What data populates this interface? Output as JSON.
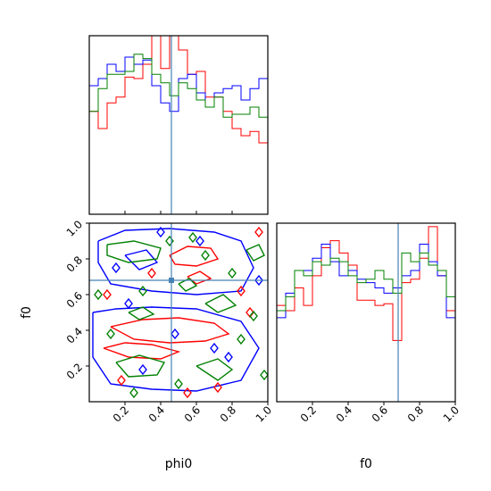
{
  "chart_data": {
    "type": "corner",
    "parameters": [
      {
        "name": "phi0",
        "xlabel": "phi0",
        "range": [
          0,
          1
        ],
        "ticks": [
          0.2,
          0.4,
          0.6,
          0.8,
          1.0
        ],
        "tick_labels": [
          "0.2",
          "0.4",
          "0.6",
          "0.8",
          "1.0"
        ],
        "truth": 0.46
      },
      {
        "name": "f0",
        "xlabel": "f0",
        "ylabel": "f0",
        "range": [
          0,
          1
        ],
        "ticks": [
          0.2,
          0.4,
          0.6,
          0.8,
          1.0
        ],
        "tick_labels": [
          "0.2",
          "0.4",
          "0.6",
          "0.8",
          "1.0"
        ],
        "truth": 0.68
      }
    ],
    "truth_color": "#4682b4",
    "series_colors": [
      "#ff0000",
      "#0000ff",
      "#008000"
    ],
    "hist_phi0": {
      "bins": 20,
      "ylim": [
        0,
        1.25
      ],
      "series": [
        {
          "color": "#ff0000",
          "values": [
            0.72,
            0.6,
            0.78,
            0.82,
            0.96,
            0.95,
            1.05,
            1.45,
            1.02,
            1.45,
            1.15,
            0.98,
            1.0,
            0.82,
            0.82,
            0.72,
            0.6,
            0.55,
            0.58,
            0.5
          ]
        },
        {
          "color": "#0000ff",
          "values": [
            0.9,
            0.95,
            1.05,
            1.0,
            1.1,
            1.05,
            1.08,
            0.9,
            0.78,
            0.72,
            0.95,
            0.98,
            0.85,
            0.75,
            0.85,
            0.88,
            0.9,
            0.8,
            0.88,
            0.95
          ]
        },
        {
          "color": "#008000",
          "values": [
            0.72,
            0.88,
            0.98,
            0.98,
            1.0,
            1.12,
            1.09,
            0.98,
            0.92,
            0.83,
            0.92,
            0.88,
            0.8,
            0.75,
            0.82,
            0.68,
            0.7,
            0.7,
            0.75,
            0.68
          ]
        }
      ]
    },
    "hist_f0": {
      "bins": 20,
      "ylim": [
        0,
        1.02
      ],
      "series": [
        {
          "color": "#ff0000",
          "values": [
            0.55,
            0.52,
            0.65,
            0.55,
            0.72,
            0.88,
            0.92,
            0.85,
            0.78,
            0.58,
            0.58,
            0.55,
            0.56,
            0.35,
            0.68,
            0.7,
            0.82,
            1.0,
            0.72,
            0.52
          ]
        },
        {
          "color": "#0000ff",
          "values": [
            0.48,
            0.62,
            0.75,
            0.75,
            0.82,
            0.9,
            0.8,
            0.72,
            0.75,
            0.7,
            0.68,
            0.65,
            0.62,
            0.65,
            0.72,
            0.75,
            0.9,
            0.8,
            0.72,
            0.48
          ]
        },
        {
          "color": "#008000",
          "values": [
            0.52,
            0.6,
            0.75,
            0.72,
            0.8,
            0.78,
            0.82,
            0.8,
            0.72,
            0.68,
            0.7,
            0.75,
            0.7,
            0.62,
            0.85,
            0.8,
            0.85,
            0.78,
            0.75,
            0.6
          ]
        }
      ]
    },
    "contour_phi0_f0": {
      "note_levels": [
        "red",
        "blue",
        "green"
      ],
      "rings": [
        {
          "color": "#ff0000",
          "points": [
            [
              0.12,
              0.42
            ],
            [
              0.3,
              0.46
            ],
            [
              0.5,
              0.47
            ],
            [
              0.7,
              0.44
            ],
            [
              0.78,
              0.38
            ],
            [
              0.65,
              0.34
            ],
            [
              0.45,
              0.33
            ],
            [
              0.25,
              0.35
            ],
            [
              0.12,
              0.42
            ]
          ]
        },
        {
          "color": "#ff0000",
          "points": [
            [
              0.08,
              0.3
            ],
            [
              0.2,
              0.33
            ],
            [
              0.35,
              0.32
            ],
            [
              0.5,
              0.28
            ],
            [
              0.4,
              0.24
            ],
            [
              0.22,
              0.25
            ],
            [
              0.08,
              0.3
            ]
          ]
        },
        {
          "color": "#ff0000",
          "points": [
            [
              0.45,
              0.82
            ],
            [
              0.55,
              0.87
            ],
            [
              0.68,
              0.86
            ],
            [
              0.72,
              0.8
            ],
            [
              0.6,
              0.76
            ],
            [
              0.48,
              0.77
            ],
            [
              0.45,
              0.82
            ]
          ]
        },
        {
          "color": "#ff0000",
          "points": [
            [
              0.55,
              0.7
            ],
            [
              0.62,
              0.73
            ],
            [
              0.68,
              0.69
            ],
            [
              0.6,
              0.66
            ],
            [
              0.55,
              0.7
            ]
          ]
        },
        {
          "color": "#0000ff",
          "points": [
            [
              0.02,
              0.5
            ],
            [
              0.15,
              0.52
            ],
            [
              0.35,
              0.53
            ],
            [
              0.6,
              0.52
            ],
            [
              0.85,
              0.45
            ],
            [
              0.95,
              0.3
            ],
            [
              0.85,
              0.12
            ],
            [
              0.6,
              0.06
            ],
            [
              0.35,
              0.07
            ],
            [
              0.12,
              0.1
            ],
            [
              0.02,
              0.25
            ],
            [
              0.02,
              0.5
            ]
          ]
        },
        {
          "color": "#0000ff",
          "points": [
            [
              0.05,
              0.9
            ],
            [
              0.2,
              0.96
            ],
            [
              0.45,
              0.97
            ],
            [
              0.7,
              0.95
            ],
            [
              0.85,
              0.9
            ],
            [
              0.92,
              0.75
            ],
            [
              0.85,
              0.62
            ],
            [
              0.6,
              0.6
            ],
            [
              0.35,
              0.62
            ],
            [
              0.12,
              0.66
            ],
            [
              0.05,
              0.78
            ],
            [
              0.05,
              0.9
            ]
          ]
        },
        {
          "color": "#0000ff",
          "points": [
            [
              0.2,
              0.82
            ],
            [
              0.32,
              0.85
            ],
            [
              0.38,
              0.78
            ],
            [
              0.28,
              0.74
            ],
            [
              0.2,
              0.82
            ]
          ]
        },
        {
          "color": "#008000",
          "points": [
            [
              0.1,
              0.88
            ],
            [
              0.25,
              0.9
            ],
            [
              0.4,
              0.86
            ],
            [
              0.38,
              0.8
            ],
            [
              0.22,
              0.78
            ],
            [
              0.1,
              0.82
            ],
            [
              0.1,
              0.88
            ]
          ]
        },
        {
          "color": "#008000",
          "points": [
            [
              0.15,
              0.22
            ],
            [
              0.28,
              0.26
            ],
            [
              0.42,
              0.22
            ],
            [
              0.38,
              0.15
            ],
            [
              0.22,
              0.14
            ],
            [
              0.15,
              0.22
            ]
          ]
        },
        {
          "color": "#008000",
          "points": [
            [
              0.6,
              0.2
            ],
            [
              0.72,
              0.24
            ],
            [
              0.8,
              0.18
            ],
            [
              0.72,
              0.12
            ],
            [
              0.6,
              0.2
            ]
          ]
        },
        {
          "color": "#008000",
          "points": [
            [
              0.65,
              0.55
            ],
            [
              0.75,
              0.6
            ],
            [
              0.82,
              0.54
            ],
            [
              0.72,
              0.5
            ],
            [
              0.65,
              0.55
            ]
          ]
        },
        {
          "color": "#008000",
          "points": [
            [
              0.22,
              0.5
            ],
            [
              0.3,
              0.53
            ],
            [
              0.36,
              0.49
            ],
            [
              0.28,
              0.46
            ],
            [
              0.22,
              0.5
            ]
          ]
        },
        {
          "color": "#008000",
          "points": [
            [
              0.5,
              0.66
            ],
            [
              0.56,
              0.69
            ],
            [
              0.6,
              0.65
            ],
            [
              0.54,
              0.62
            ],
            [
              0.5,
              0.66
            ]
          ]
        },
        {
          "color": "#008000",
          "points": [
            [
              0.88,
              0.85
            ],
            [
              0.95,
              0.88
            ],
            [
              0.98,
              0.82
            ],
            [
              0.92,
              0.79
            ],
            [
              0.88,
              0.85
            ]
          ]
        }
      ],
      "blobs": [
        {
          "color": "#ff0000",
          "points": [
            [
              0.35,
              0.72
            ],
            [
              0.85,
              0.62
            ],
            [
              0.1,
              0.6
            ],
            [
              0.9,
              0.5
            ],
            [
              0.55,
              0.05
            ],
            [
              0.72,
              0.08
            ],
            [
              0.95,
              0.95
            ],
            [
              0.18,
              0.12
            ]
          ]
        },
        {
          "color": "#0000ff",
          "points": [
            [
              0.15,
              0.75
            ],
            [
              0.22,
              0.55
            ],
            [
              0.4,
              0.95
            ],
            [
              0.62,
              0.9
            ],
            [
              0.78,
              0.25
            ],
            [
              0.95,
              0.68
            ],
            [
              0.3,
              0.18
            ],
            [
              0.48,
              0.38
            ],
            [
              0.7,
              0.3
            ]
          ]
        },
        {
          "color": "#008000",
          "points": [
            [
              0.05,
              0.6
            ],
            [
              0.12,
              0.38
            ],
            [
              0.3,
              0.62
            ],
            [
              0.45,
              0.9
            ],
            [
              0.58,
              0.92
            ],
            [
              0.8,
              0.72
            ],
            [
              0.92,
              0.48
            ],
            [
              0.25,
              0.05
            ],
            [
              0.5,
              0.1
            ],
            [
              0.85,
              0.35
            ],
            [
              0.65,
              0.82
            ],
            [
              0.98,
              0.15
            ]
          ]
        }
      ]
    }
  }
}
